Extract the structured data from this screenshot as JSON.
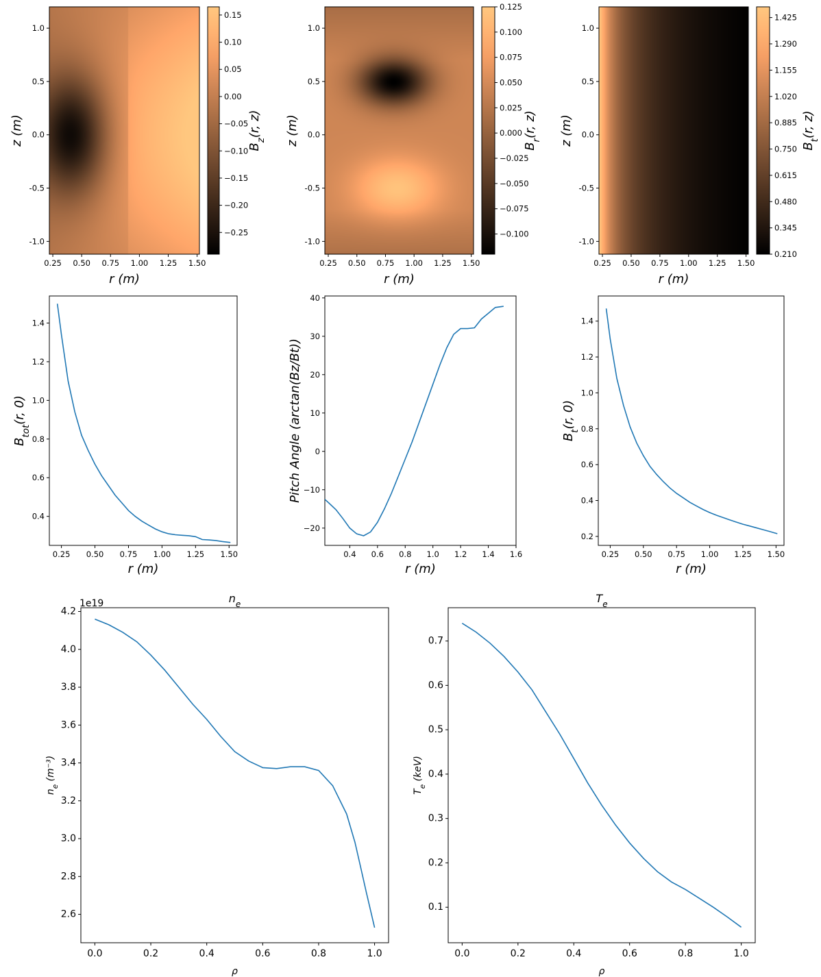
{
  "chart_data": [
    {
      "id": "bz-map",
      "type": "heatmap",
      "xlabel": "r (m)",
      "ylabel": "z (m)",
      "xlim": [
        0.22,
        1.52
      ],
      "ylim": [
        -1.12,
        1.2
      ],
      "xticks": [
        "0.25",
        "0.50",
        "0.75",
        "1.00",
        "1.25",
        "1.50"
      ],
      "yticks": [
        "-1.0",
        "-0.5",
        "0.0",
        "0.5",
        "1.0"
      ],
      "colorbar_label": "Bz(r,z)",
      "colorbar_ticks": [
        "0.15",
        "0.10",
        "0.05",
        "0.00",
        "−0.05",
        "−0.10",
        "−0.15",
        "−0.20",
        "−0.25"
      ],
      "colorbar_range": [
        -0.29,
        0.165
      ],
      "colormap": "copper",
      "field": [
        {
          "r": 0.42,
          "z": 0.0,
          "value": -0.29,
          "spread": 0.32
        },
        {
          "r": 1.3,
          "z": 0.0,
          "value": 0.16,
          "spread": 0.5
        }
      ]
    },
    {
      "id": "br-map",
      "type": "heatmap",
      "xlabel": "r (m)",
      "ylabel": "z (m)",
      "xlim": [
        0.22,
        1.52
      ],
      "ylim": [
        -1.12,
        1.2
      ],
      "xticks": [
        "0.25",
        "0.50",
        "0.75",
        "1.00",
        "1.25",
        "1.50"
      ],
      "yticks": [
        "-1.0",
        "-0.5",
        "0.0",
        "0.5",
        "1.0"
      ],
      "colorbar_label": "Br(r,z)",
      "colorbar_ticks": [
        "0.125",
        "0.100",
        "0.075",
        "0.050",
        "0.025",
        "0.000",
        "−0.025",
        "−0.050",
        "−0.075",
        "−0.100"
      ],
      "colorbar_range": [
        -0.12,
        0.125
      ],
      "colormap": "copper",
      "field": [
        {
          "r": 0.82,
          "z": 0.5,
          "value": -0.12,
          "spread": 0.28
        },
        {
          "r": 0.85,
          "z": -0.5,
          "value": 0.12,
          "spread": 0.32
        }
      ]
    },
    {
      "id": "bt-map",
      "type": "heatmap",
      "xlabel": "r (m)",
      "ylabel": "z (m)",
      "xlim": [
        0.22,
        1.52
      ],
      "ylim": [
        -1.12,
        1.2
      ],
      "xticks": [
        "0.25",
        "0.50",
        "0.75",
        "1.00",
        "1.25",
        "1.50"
      ],
      "yticks": [
        "-1.0",
        "-0.5",
        "0.0",
        "0.5",
        "1.0"
      ],
      "colorbar_label": "Bt(r,z)",
      "colorbar_ticks": [
        "1.425",
        "1.290",
        "1.155",
        "1.020",
        "0.885",
        "0.750",
        "0.615",
        "0.480",
        "0.345",
        "0.210"
      ],
      "colorbar_range": [
        0.21,
        1.48
      ],
      "colormap": "copper"
    },
    {
      "id": "btot-line",
      "type": "line",
      "xlabel": "r (m)",
      "ylabel": "Btot(r,0)",
      "xlim": [
        0.16,
        1.56
      ],
      "ylim": [
        0.25,
        1.54
      ],
      "xticks": [
        "0.25",
        "0.50",
        "0.75",
        "1.00",
        "1.25",
        "1.50"
      ],
      "yticks": [
        "0.4",
        "0.6",
        "0.8",
        "1.0",
        "1.2",
        "1.4"
      ],
      "x": [
        0.22,
        0.25,
        0.3,
        0.35,
        0.4,
        0.45,
        0.5,
        0.55,
        0.6,
        0.65,
        0.7,
        0.75,
        0.8,
        0.85,
        0.9,
        0.95,
        1.0,
        1.05,
        1.1,
        1.15,
        1.2,
        1.25,
        1.3,
        1.35,
        1.4,
        1.45,
        1.51
      ],
      "y": [
        1.5,
        1.34,
        1.1,
        0.94,
        0.82,
        0.74,
        0.67,
        0.61,
        0.56,
        0.51,
        0.47,
        0.43,
        0.4,
        0.375,
        0.355,
        0.335,
        0.32,
        0.31,
        0.305,
        0.302,
        0.3,
        0.295,
        0.28,
        0.278,
        0.275,
        0.27,
        0.265
      ]
    },
    {
      "id": "pitch-line",
      "type": "line",
      "xlabel": "r (m)",
      "ylabel": "Pitch Angle (arctan(Bz/Bt))",
      "xlim": [
        0.22,
        1.6
      ],
      "ylim": [
        -24.5,
        40.5
      ],
      "xticks": [
        "0.4",
        "0.6",
        "0.8",
        "1.0",
        "1.2",
        "1.4",
        "1.6"
      ],
      "yticks": [
        "−20",
        "−10",
        "0",
        "10",
        "20",
        "30",
        "40"
      ],
      "x": [
        0.22,
        0.25,
        0.3,
        0.35,
        0.4,
        0.45,
        0.5,
        0.55,
        0.6,
        0.65,
        0.7,
        0.75,
        0.8,
        0.85,
        0.9,
        0.95,
        1.0,
        1.05,
        1.1,
        1.15,
        1.2,
        1.25,
        1.3,
        1.35,
        1.4,
        1.45,
        1.51
      ],
      "y": [
        -12.5,
        -13.5,
        -15.2,
        -17.5,
        -20.0,
        -21.5,
        -22.0,
        -21.0,
        -18.5,
        -15.0,
        -11.0,
        -6.5,
        -2.0,
        2.5,
        7.5,
        12.5,
        17.5,
        22.5,
        27.0,
        30.5,
        32.0,
        32.0,
        32.2,
        34.5,
        36.0,
        37.5,
        37.8
      ]
    },
    {
      "id": "bt-line",
      "type": "line",
      "xlabel": "r (m)",
      "ylabel": "Bt(r,0)",
      "xlim": [
        0.16,
        1.56
      ],
      "ylim": [
        0.15,
        1.54
      ],
      "xticks": [
        "0.25",
        "0.50",
        "0.75",
        "1.00",
        "1.25",
        "1.50"
      ],
      "yticks": [
        "0.2",
        "0.4",
        "0.6",
        "0.8",
        "1.0",
        "1.2",
        "1.4"
      ],
      "x": [
        0.22,
        0.25,
        0.3,
        0.35,
        0.4,
        0.45,
        0.5,
        0.55,
        0.6,
        0.65,
        0.7,
        0.75,
        0.8,
        0.85,
        0.9,
        0.95,
        1.0,
        1.05,
        1.1,
        1.15,
        1.2,
        1.25,
        1.3,
        1.35,
        1.4,
        1.45,
        1.51
      ],
      "y": [
        1.47,
        1.3,
        1.08,
        0.93,
        0.81,
        0.72,
        0.65,
        0.59,
        0.545,
        0.505,
        0.47,
        0.44,
        0.415,
        0.39,
        0.37,
        0.35,
        0.333,
        0.318,
        0.305,
        0.292,
        0.28,
        0.268,
        0.258,
        0.248,
        0.238,
        0.228,
        0.215
      ]
    },
    {
      "id": "ne-line",
      "type": "line",
      "title": "ne",
      "xlabel": "ρ",
      "ylabel": "ne (m⁻³)",
      "offset_label": "1e19",
      "xlim": [
        -0.05,
        1.05
      ],
      "ylim": [
        2.45,
        4.22
      ],
      "xticks": [
        "0.0",
        "0.2",
        "0.4",
        "0.6",
        "0.8",
        "1.0"
      ],
      "yticks": [
        "2.6",
        "2.8",
        "3.0",
        "3.2",
        "3.4",
        "3.6",
        "3.8",
        "4.0",
        "4.2"
      ],
      "x": [
        0.0,
        0.05,
        0.1,
        0.15,
        0.2,
        0.25,
        0.3,
        0.35,
        0.4,
        0.45,
        0.5,
        0.55,
        0.6,
        0.65,
        0.7,
        0.75,
        0.8,
        0.85,
        0.9,
        0.93,
        0.95,
        0.97,
        1.0
      ],
      "y": [
        4.16,
        4.13,
        4.09,
        4.04,
        3.97,
        3.89,
        3.8,
        3.71,
        3.63,
        3.54,
        3.46,
        3.41,
        3.375,
        3.37,
        3.38,
        3.38,
        3.36,
        3.28,
        3.13,
        2.98,
        2.85,
        2.72,
        2.53
      ]
    },
    {
      "id": "te-line",
      "type": "line",
      "title": "Te",
      "xlabel": "ρ",
      "ylabel": "Te (keV)",
      "xlim": [
        -0.05,
        1.05
      ],
      "ylim": [
        0.02,
        0.775
      ],
      "xticks": [
        "0.0",
        "0.2",
        "0.4",
        "0.6",
        "0.8",
        "1.0"
      ],
      "yticks": [
        "0.1",
        "0.2",
        "0.3",
        "0.4",
        "0.5",
        "0.6",
        "0.7"
      ],
      "x": [
        0.0,
        0.05,
        0.1,
        0.15,
        0.2,
        0.25,
        0.3,
        0.35,
        0.4,
        0.45,
        0.5,
        0.55,
        0.6,
        0.65,
        0.7,
        0.75,
        0.8,
        0.85,
        0.9,
        0.95,
        1.0
      ],
      "y": [
        0.74,
        0.72,
        0.695,
        0.665,
        0.63,
        0.59,
        0.54,
        0.49,
        0.435,
        0.38,
        0.33,
        0.285,
        0.245,
        0.21,
        0.18,
        0.157,
        0.14,
        0.12,
        0.1,
        0.078,
        0.055
      ]
    }
  ]
}
